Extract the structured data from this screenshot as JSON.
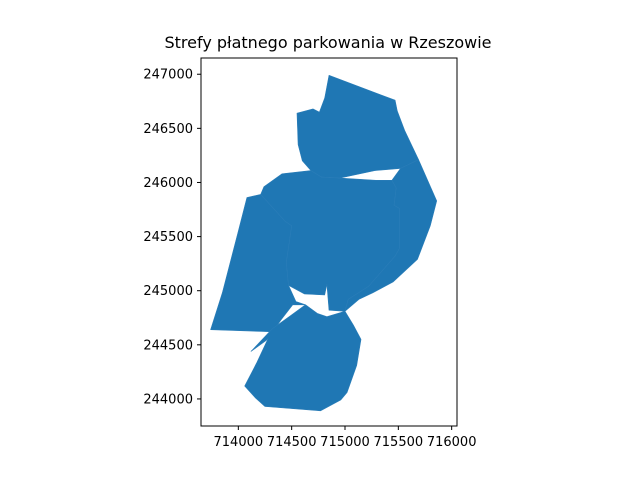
{
  "chart_data": {
    "type": "map",
    "title": "Strefy płatnego parkowania w Rzeszowie",
    "xlim": [
      713650,
      716050
    ],
    "ylim": [
      243750,
      247150
    ],
    "x_ticks": [
      714000,
      714500,
      715000,
      715500,
      716000
    ],
    "y_ticks": [
      244000,
      244500,
      245000,
      245500,
      246000,
      246500,
      247000
    ],
    "x_tick_labels": [
      "714000",
      "714500",
      "715000",
      "715500",
      "716000"
    ],
    "y_tick_labels": [
      "244000",
      "244500",
      "245000",
      "245500",
      "246000",
      "246500",
      "247000"
    ],
    "fill_color": "#1f77b4",
    "edge_color": "#2a7db8",
    "grid": false,
    "zones": [
      {
        "coords": [
          [
            714550,
            246640
          ],
          [
            714700,
            246680
          ],
          [
            714760,
            246650
          ],
          [
            714810,
            246780
          ],
          [
            714850,
            246990
          ],
          [
            715470,
            246760
          ],
          [
            715490,
            246660
          ],
          [
            715560,
            246480
          ],
          [
            715690,
            246210
          ],
          [
            715520,
            246130
          ],
          [
            715280,
            246110
          ],
          [
            714950,
            246040
          ],
          [
            714780,
            246050
          ],
          [
            714680,
            246110
          ],
          [
            714600,
            246200
          ],
          [
            714560,
            246350
          ]
        ]
      },
      {
        "coords": [
          [
            713740,
            244640
          ],
          [
            714330,
            244620
          ],
          [
            714260,
            244540
          ],
          [
            714120,
            244440
          ],
          [
            714280,
            244560
          ],
          [
            714400,
            244730
          ],
          [
            714510,
            244870
          ],
          [
            714630,
            244870
          ],
          [
            714540,
            244900
          ],
          [
            714470,
            245050
          ],
          [
            714450,
            245260
          ],
          [
            714500,
            245600
          ],
          [
            714440,
            245640
          ],
          [
            714210,
            245890
          ],
          [
            714080,
            245860
          ],
          [
            714000,
            245550
          ],
          [
            713850,
            244980
          ]
        ]
      },
      {
        "coords": [
          [
            714210,
            245890
          ],
          [
            714440,
            245640
          ],
          [
            714500,
            245600
          ],
          [
            714450,
            245260
          ],
          [
            714470,
            245050
          ],
          [
            714620,
            244970
          ],
          [
            714810,
            244960
          ],
          [
            714830,
            245060
          ],
          [
            714850,
            244820
          ],
          [
            715000,
            244810
          ],
          [
            715030,
            244920
          ],
          [
            715220,
            245040
          ],
          [
            715470,
            245320
          ],
          [
            715510,
            245390
          ],
          [
            715510,
            245760
          ],
          [
            715460,
            245790
          ],
          [
            715480,
            245950
          ],
          [
            715440,
            246020
          ],
          [
            715290,
            246020
          ],
          [
            714950,
            246040
          ],
          [
            714780,
            246050
          ],
          [
            714680,
            246110
          ],
          [
            714410,
            246080
          ],
          [
            714240,
            245960
          ]
        ]
      },
      {
        "coords": [
          [
            715440,
            246020
          ],
          [
            715480,
            245950
          ],
          [
            715460,
            245790
          ],
          [
            715510,
            245760
          ],
          [
            715510,
            245390
          ],
          [
            715470,
            245320
          ],
          [
            715220,
            245040
          ],
          [
            715030,
            244920
          ],
          [
            715000,
            244810
          ],
          [
            715130,
            244920
          ],
          [
            715260,
            244980
          ],
          [
            715450,
            245080
          ],
          [
            715680,
            245290
          ],
          [
            715800,
            245600
          ],
          [
            715860,
            245830
          ],
          [
            715690,
            246210
          ],
          [
            715520,
            246130
          ]
        ]
      },
      {
        "coords": [
          [
            714280,
            244560
          ],
          [
            714120,
            244440
          ],
          [
            714320,
            244650
          ],
          [
            714490,
            244770
          ],
          [
            714630,
            244870
          ],
          [
            714740,
            244790
          ],
          [
            714830,
            244760
          ],
          [
            715000,
            244810
          ],
          [
            715080,
            244680
          ],
          [
            715150,
            244550
          ],
          [
            715110,
            244310
          ],
          [
            715020,
            244060
          ],
          [
            714960,
            243990
          ],
          [
            714770,
            243890
          ],
          [
            714250,
            243930
          ],
          [
            714160,
            244010
          ],
          [
            714060,
            244120
          ],
          [
            714170,
            244330
          ]
        ]
      }
    ]
  }
}
